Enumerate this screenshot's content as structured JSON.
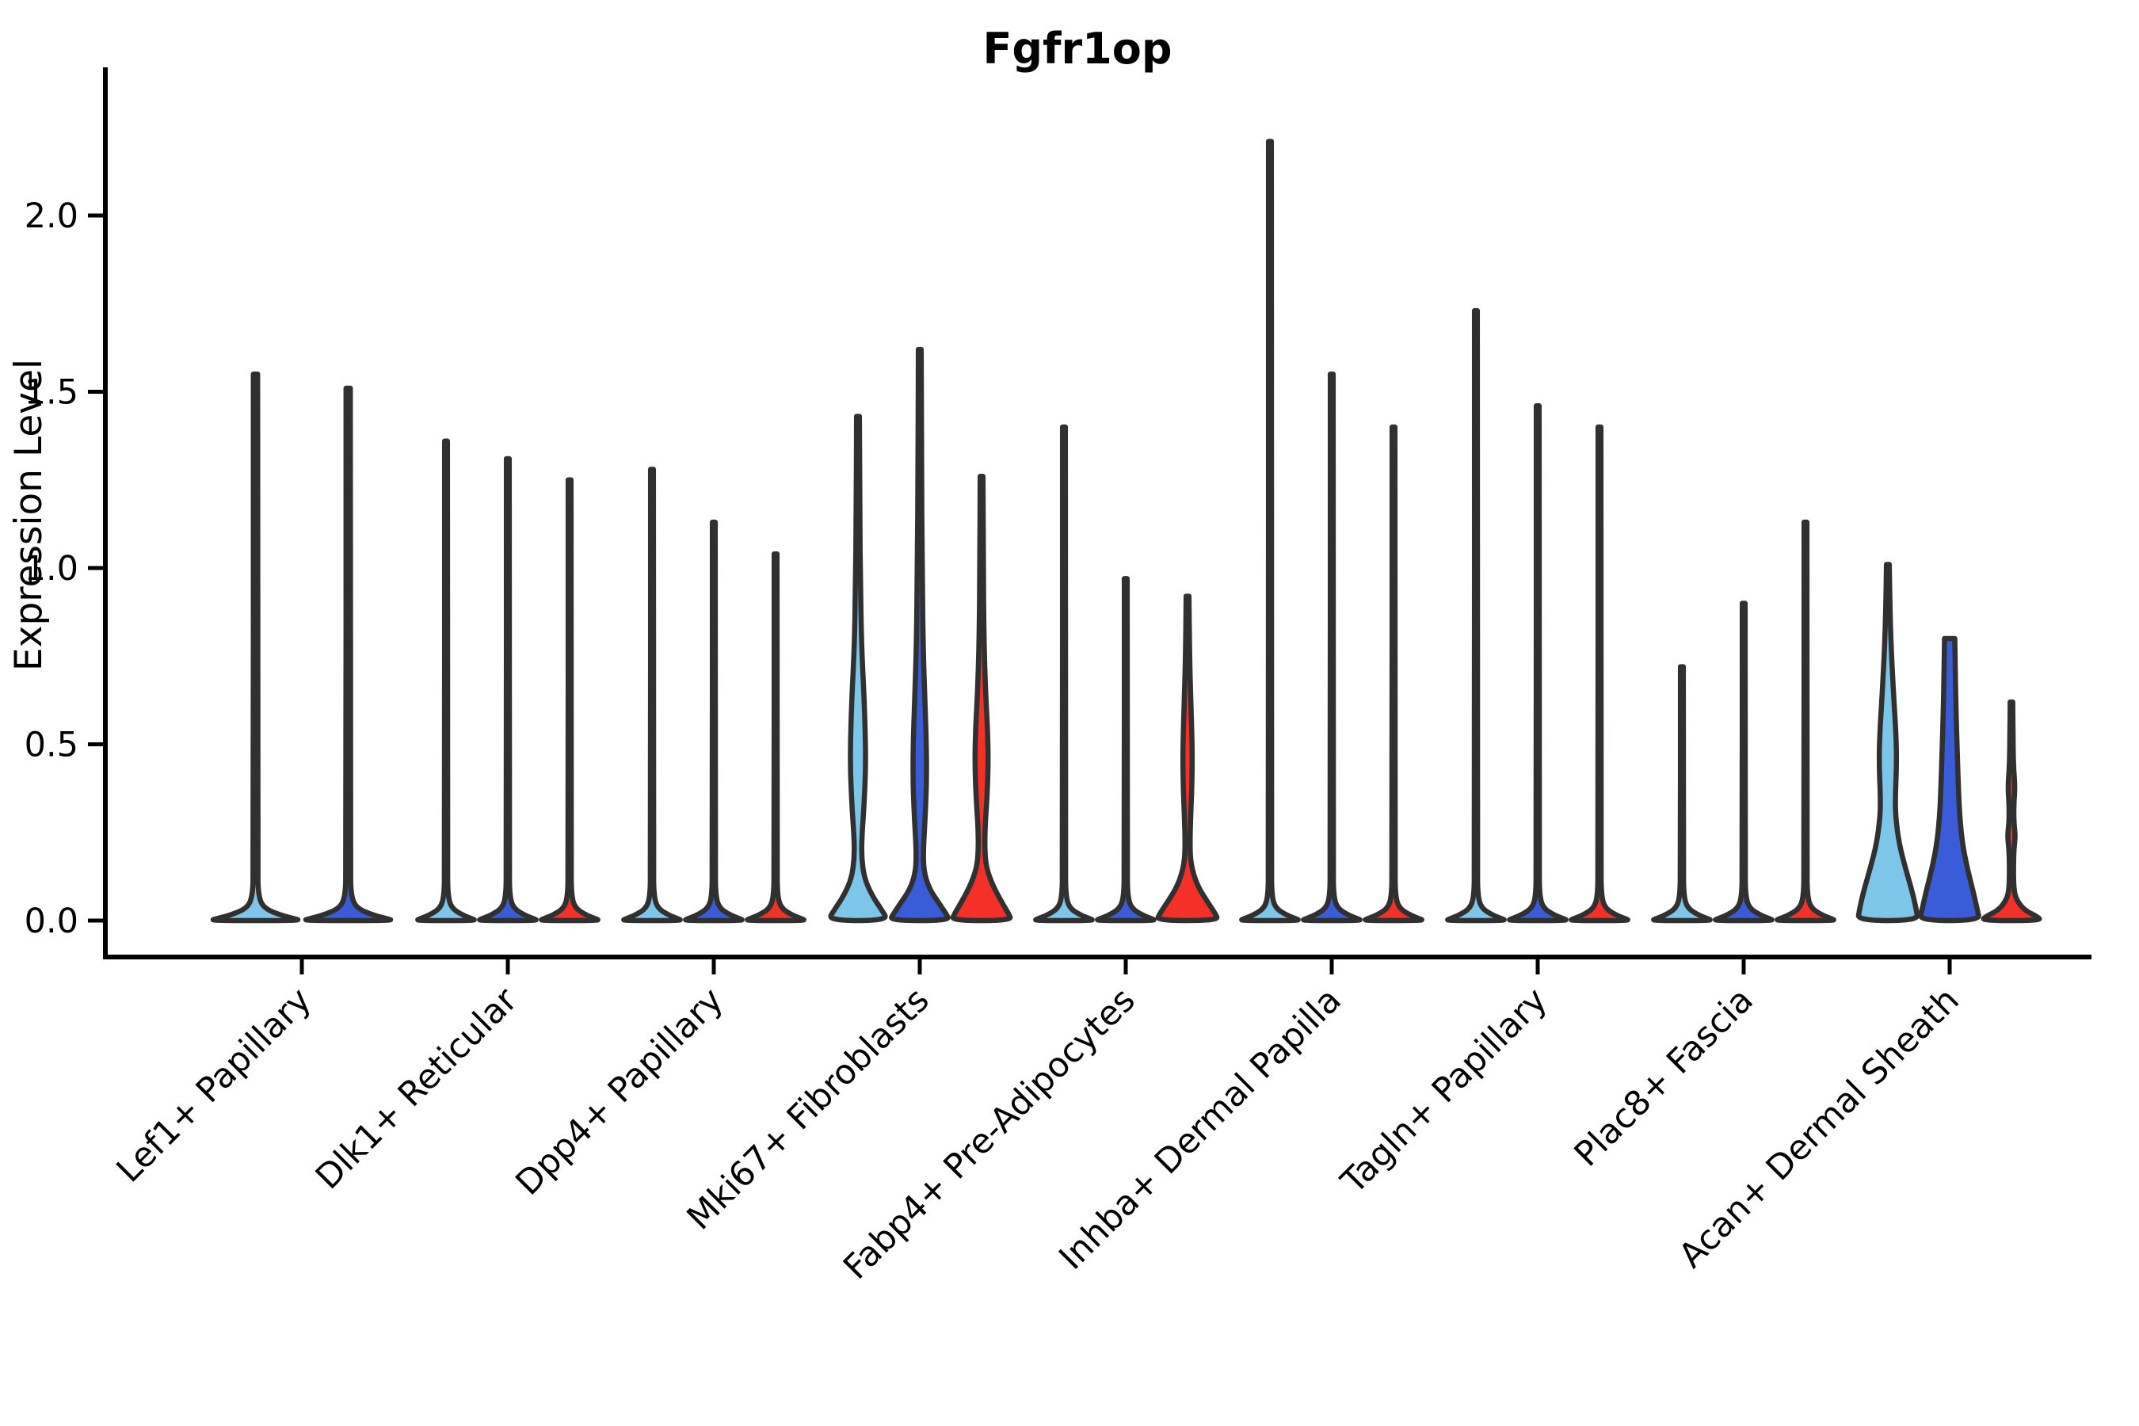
{
  "chart_data": {
    "type": "violin",
    "title": "Fgfr1op",
    "ylabel": "Expression Level",
    "xlabel": "",
    "yticks": [
      "0.0",
      "0.5",
      "1.0",
      "1.5",
      "2.0"
    ],
    "ylim": [
      0,
      2.42
    ],
    "legend": "none",
    "grid": false,
    "colors": {
      "light_blue": "#7EC5EA",
      "dark_blue": "#3A5CD8",
      "red": "#F43029",
      "outline": "#303030"
    },
    "categories": [
      "Lef1+ Papillary",
      "Dlk1+ Reticular",
      "Dpp4+ Papillary",
      "Mki67+ Fibroblasts",
      "Fabp4+ Pre-Adipocytes",
      "Inhba+ Dermal Papilla",
      "Tagln+ Papillary",
      "Plac8+ Fascia",
      "Acan+ Dermal Sheath"
    ],
    "groups": [
      {
        "category": "Lef1+ Papillary",
        "violins": [
          {
            "color": "light_blue",
            "max": 1.55,
            "shape": "spike"
          },
          {
            "color": "dark_blue",
            "max": 1.51,
            "shape": "spike"
          }
        ]
      },
      {
        "category": "Dlk1+ Reticular",
        "violins": [
          {
            "color": "light_blue",
            "max": 1.36,
            "shape": "spike"
          },
          {
            "color": "dark_blue",
            "max": 1.31,
            "shape": "spike"
          },
          {
            "color": "red",
            "max": 1.25,
            "shape": "spike"
          }
        ]
      },
      {
        "category": "Dpp4+ Papillary",
        "violins": [
          {
            "color": "light_blue",
            "max": 1.28,
            "shape": "spike"
          },
          {
            "color": "dark_blue",
            "max": 1.13,
            "shape": "spike"
          },
          {
            "color": "red",
            "max": 1.04,
            "shape": "spike"
          }
        ]
      },
      {
        "category": "Mki67+ Fibroblasts",
        "violins": [
          {
            "color": "light_blue",
            "max": 1.43,
            "shape": "body",
            "profile": [
              [
                1.43,
                0.046
              ],
              [
                1.15,
                0.056
              ],
              [
                0.95,
                0.082
              ],
              [
                0.78,
                0.115
              ],
              [
                0.62,
                0.205
              ],
              [
                0.5,
                0.244
              ],
              [
                0.42,
                0.244
              ],
              [
                0.32,
                0.192
              ],
              [
                0.24,
                0.128
              ],
              [
                0.18,
                0.115
              ],
              [
                0.12,
                0.205
              ],
              [
                0.07,
                0.462
              ],
              [
                0.03,
                0.769
              ],
              [
                0.0,
                0.974
              ]
            ]
          },
          {
            "color": "dark_blue",
            "max": 1.62,
            "shape": "body",
            "profile": [
              [
                1.62,
                0.046
              ],
              [
                1.3,
                0.056
              ],
              [
                1.0,
                0.077
              ],
              [
                0.75,
                0.115
              ],
              [
                0.6,
                0.179
              ],
              [
                0.48,
                0.218
              ],
              [
                0.38,
                0.218
              ],
              [
                0.28,
                0.167
              ],
              [
                0.2,
                0.115
              ],
              [
                0.14,
                0.128
              ],
              [
                0.09,
                0.308
              ],
              [
                0.05,
                0.615
              ],
              [
                0.02,
                0.846
              ],
              [
                0.0,
                0.974
              ]
            ]
          },
          {
            "color": "red",
            "max": 1.26,
            "shape": "body",
            "profile": [
              [
                1.26,
                0.046
              ],
              [
                1.0,
                0.056
              ],
              [
                0.8,
                0.077
              ],
              [
                0.65,
                0.128
              ],
              [
                0.55,
                0.192
              ],
              [
                0.45,
                0.218
              ],
              [
                0.35,
                0.179
              ],
              [
                0.27,
                0.115
              ],
              [
                0.2,
                0.103
              ],
              [
                0.15,
                0.154
              ],
              [
                0.1,
                0.359
              ],
              [
                0.05,
                0.667
              ],
              [
                0.02,
                0.872
              ],
              [
                0.0,
                0.974
              ]
            ]
          }
        ]
      },
      {
        "category": "Fabp4+ Pre-Adipocytes",
        "violins": [
          {
            "color": "light_blue",
            "max": 1.4,
            "shape": "spike"
          },
          {
            "color": "dark_blue",
            "max": 0.97,
            "shape": "spike"
          },
          {
            "color": "red",
            "max": 0.92,
            "shape": "body",
            "profile": [
              [
                0.92,
                0.046
              ],
              [
                0.75,
                0.064
              ],
              [
                0.6,
                0.115
              ],
              [
                0.48,
                0.154
              ],
              [
                0.38,
                0.141
              ],
              [
                0.3,
                0.103
              ],
              [
                0.22,
                0.077
              ],
              [
                0.16,
                0.103
              ],
              [
                0.1,
                0.308
              ],
              [
                0.05,
                0.667
              ],
              [
                0.02,
                0.897
              ],
              [
                0.0,
                1.0
              ]
            ]
          }
        ]
      },
      {
        "category": "Inhba+ Dermal Papilla",
        "violins": [
          {
            "color": "light_blue",
            "max": 2.21,
            "shape": "spike"
          },
          {
            "color": "dark_blue",
            "max": 1.55,
            "shape": "spike"
          },
          {
            "color": "red",
            "max": 1.4,
            "shape": "spike"
          }
        ]
      },
      {
        "category": "Tagln+ Papillary",
        "violins": [
          {
            "color": "light_blue",
            "max": 1.73,
            "shape": "spike"
          },
          {
            "color": "dark_blue",
            "max": 1.46,
            "shape": "spike"
          },
          {
            "color": "red",
            "max": 1.4,
            "shape": "spike"
          }
        ]
      },
      {
        "category": "Plac8+ Fascia",
        "violins": [
          {
            "color": "light_blue",
            "max": 0.72,
            "shape": "spike"
          },
          {
            "color": "dark_blue",
            "max": 0.9,
            "shape": "spike"
          },
          {
            "color": "red",
            "max": 1.13,
            "shape": "spike"
          }
        ]
      },
      {
        "category": "Acan+ Dermal Sheath",
        "violins": [
          {
            "color": "light_blue",
            "max": 1.01,
            "shape": "body",
            "profile": [
              [
                1.01,
                0.046
              ],
              [
                0.9,
                0.064
              ],
              [
                0.78,
                0.103
              ],
              [
                0.65,
                0.179
              ],
              [
                0.52,
                0.269
              ],
              [
                0.44,
                0.282
              ],
              [
                0.36,
                0.244
              ],
              [
                0.3,
                0.244
              ],
              [
                0.22,
                0.359
              ],
              [
                0.15,
                0.564
              ],
              [
                0.08,
                0.795
              ],
              [
                0.03,
                0.923
              ],
              [
                0.0,
                0.974
              ]
            ]
          },
          {
            "color": "dark_blue",
            "max": 0.8,
            "shape": "body",
            "profile": [
              [
                0.8,
                0.167
              ],
              [
                0.72,
                0.179
              ],
              [
                0.6,
                0.205
              ],
              [
                0.48,
                0.244
              ],
              [
                0.38,
                0.282
              ],
              [
                0.3,
                0.321
              ],
              [
                0.22,
                0.41
              ],
              [
                0.15,
                0.564
              ],
              [
                0.08,
                0.769
              ],
              [
                0.03,
                0.897
              ],
              [
                0.0,
                0.974
              ]
            ]
          },
          {
            "color": "red",
            "max": 0.62,
            "shape": "body",
            "profile": [
              [
                0.62,
                0.041
              ],
              [
                0.52,
                0.051
              ],
              [
                0.44,
                0.064
              ],
              [
                0.38,
                0.115
              ],
              [
                0.33,
                0.077
              ],
              [
                0.28,
                0.077
              ],
              [
                0.24,
                0.128
              ],
              [
                0.2,
                0.077
              ],
              [
                0.14,
                0.064
              ],
              [
                0.09,
                0.077
              ],
              [
                0.06,
                0.154
              ],
              [
                0.03,
                0.41
              ],
              [
                0.012,
                0.821
              ],
              [
                0.0,
                0.974
              ]
            ]
          }
        ]
      }
    ]
  }
}
